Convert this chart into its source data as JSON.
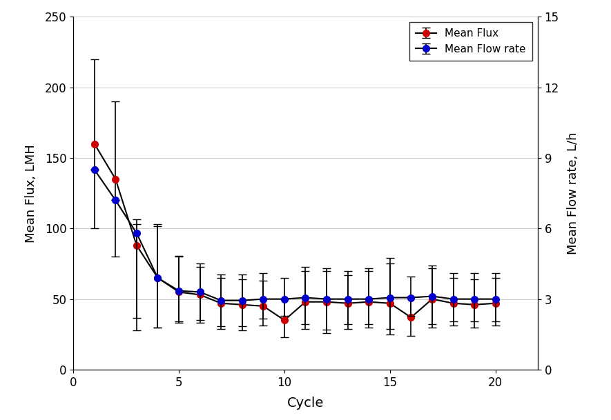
{
  "cycles": [
    1,
    2,
    3,
    4,
    5,
    6,
    7,
    8,
    9,
    10,
    11,
    12,
    13,
    14,
    15,
    16,
    17,
    18,
    19,
    20
  ],
  "mean_flux": [
    160,
    135,
    88,
    65,
    55,
    53,
    47,
    46,
    45,
    35,
    48,
    48,
    47,
    48,
    47,
    37,
    50,
    47,
    46,
    47
  ],
  "flux_yerr_plus": [
    60,
    55,
    15,
    38,
    25,
    20,
    18,
    18,
    18,
    15,
    22,
    22,
    20,
    22,
    28,
    15,
    22,
    18,
    18,
    18
  ],
  "flux_yerr_minus": [
    60,
    55,
    60,
    35,
    22,
    20,
    18,
    18,
    14,
    12,
    19,
    22,
    18,
    18,
    22,
    13,
    20,
    16,
    16,
    16
  ],
  "mean_flow_lh": [
    8.5,
    7.2,
    5.8,
    3.9,
    3.35,
    3.3,
    2.94,
    2.94,
    3.0,
    3.0,
    3.06,
    3.0,
    3.0,
    3.0,
    3.06,
    3.06,
    3.12,
    3.0,
    3.0,
    3.0
  ],
  "flow_err_plus_lh": [
    0.0,
    0.0,
    0.6,
    2.2,
    1.5,
    1.2,
    1.1,
    1.1,
    1.1,
    0.9,
    1.3,
    1.3,
    1.2,
    1.3,
    1.7,
    0.9,
    1.3,
    1.1,
    1.1,
    1.1
  ],
  "flow_err_minus_lh": [
    0.0,
    0.0,
    3.6,
    2.1,
    1.3,
    1.2,
    1.1,
    1.1,
    0.84,
    0.72,
    1.14,
    1.3,
    1.08,
    1.08,
    1.32,
    0.78,
    1.2,
    0.96,
    0.96,
    0.96
  ],
  "flux_color": "#cc0000",
  "flow_color": "#0000cc",
  "line_color": "#000000",
  "ylabel_left": "Mean Flux, LMH",
  "ylabel_right": "Mean Flow rate, L/h",
  "xlabel": "Cycle",
  "ylim_left": [
    0,
    250
  ],
  "ylim_right": [
    0,
    15
  ],
  "yticks_left": [
    0,
    50,
    100,
    150,
    200,
    250
  ],
  "yticks_right": [
    0,
    3,
    6,
    9,
    12,
    15
  ],
  "xticks": [
    0,
    5,
    10,
    15,
    20
  ],
  "xlim": [
    0,
    22
  ],
  "background_color": "#ffffff",
  "legend_flux": "Mean Flux",
  "legend_flow": "Mean Flow rate",
  "grid_color": "#cccccc"
}
